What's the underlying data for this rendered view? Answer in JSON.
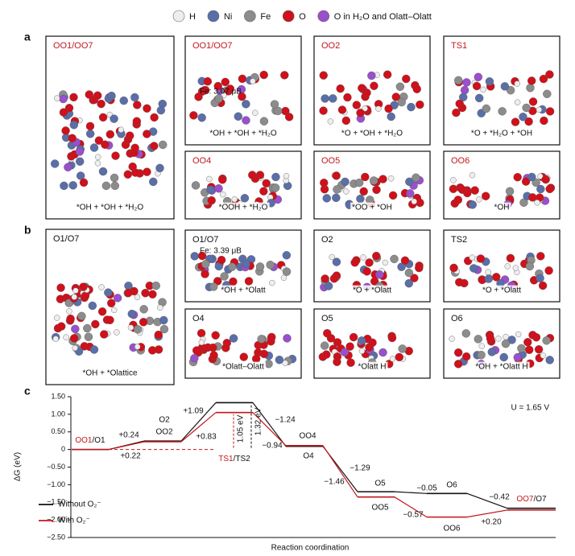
{
  "legend": [
    {
      "label": "H",
      "color": "#eeeeee"
    },
    {
      "label": "Ni",
      "color": "#5a6ea8"
    },
    {
      "label": "Fe",
      "color": "#8c8c8c"
    },
    {
      "label": "O",
      "color": "#d0101a"
    },
    {
      "label": "O in H₂O and Olatt–Olatt",
      "color": "#9a4fcc"
    }
  ],
  "panel_a": {
    "label": "a",
    "panels": [
      {
        "title": "OO1/OO7",
        "caption": "*OH + *OH + *H₂O"
      },
      {
        "title": "OO1/OO7",
        "note": "Fe: 3.07 μB",
        "caption": "*OH + *OH + *H₂O"
      },
      {
        "title": "OO2",
        "caption": "*O + *OH + *H₂O"
      },
      {
        "title": "TS1",
        "caption": "*O + *H₂O + *OH"
      },
      {
        "title": "OO4",
        "caption": "*OOH + *H₂O"
      },
      {
        "title": "OO5",
        "caption": "*OO + *OH"
      },
      {
        "title": "OO6",
        "caption": "*OH"
      }
    ]
  },
  "panel_b": {
    "label": "b",
    "panels": [
      {
        "title": "O1/O7",
        "caption": "*OH + *Olattice"
      },
      {
        "title": "O1/O7",
        "note": "Fe: 3.39 μB",
        "caption": "*OH + *Olatt"
      },
      {
        "title": "O2",
        "caption": "*O + *Olatt"
      },
      {
        "title": "TS2",
        "caption": "*O + *Olatt"
      },
      {
        "title": "O4",
        "caption": "*Olatt–Olatt"
      },
      {
        "title": "O5",
        "caption": "*Olatt H"
      },
      {
        "title": "O6",
        "caption": "*OH + *Olatt H"
      }
    ]
  },
  "chart_data": {
    "type": "step",
    "panel_label": "c",
    "ylabel": "ΔG (eV)",
    "xlabel": "Reaction coordination",
    "ylim": [
      -2.5,
      1.5
    ],
    "yticks": [
      {
        "value": 1.5,
        "label": "1.50"
      },
      {
        "value": 1,
        "label": "1.00"
      },
      {
        "value": 0.5,
        "label": "0.50"
      },
      0,
      {
        "value": -0.5,
        "label": "−0.50"
      },
      {
        "value": -1,
        "label": "−1.00"
      },
      {
        "value": -1.5,
        "label": "−1.50"
      },
      {
        "value": -2,
        "label": "−2.00"
      },
      {
        "value": -2.5,
        "label": "−2.50"
      }
    ],
    "annotation": "U = 1.65 V",
    "barrier_labels": [
      "1.05 eV",
      "1.32 eV"
    ],
    "series": [
      {
        "name": "Without O₂⁻",
        "color": "#111111",
        "states": [
          "O1",
          "O2",
          "TS2",
          "O4",
          "O5",
          "O6",
          "O7"
        ],
        "values": [
          0,
          0.24,
          1.33,
          0.09,
          -1.2,
          -1.25,
          -1.67
        ],
        "step_labels": [
          null,
          "+0.24",
          "+1.09",
          "−1.24",
          "−1.29",
          "−0.05",
          "−0.42"
        ]
      },
      {
        "name": "With O₂⁻",
        "color": "#c4161c",
        "states": [
          "OO1",
          "OO2",
          "TS1",
          "OO4",
          "OO5",
          "OO6",
          "OO7"
        ],
        "values": [
          0,
          0.22,
          1.05,
          0.11,
          -1.35,
          -1.92,
          -1.72
        ],
        "step_labels": [
          null,
          "+0.22",
          "+0.83",
          "−0.94",
          "−1.46",
          "−0.57",
          "+0.20"
        ]
      }
    ]
  }
}
